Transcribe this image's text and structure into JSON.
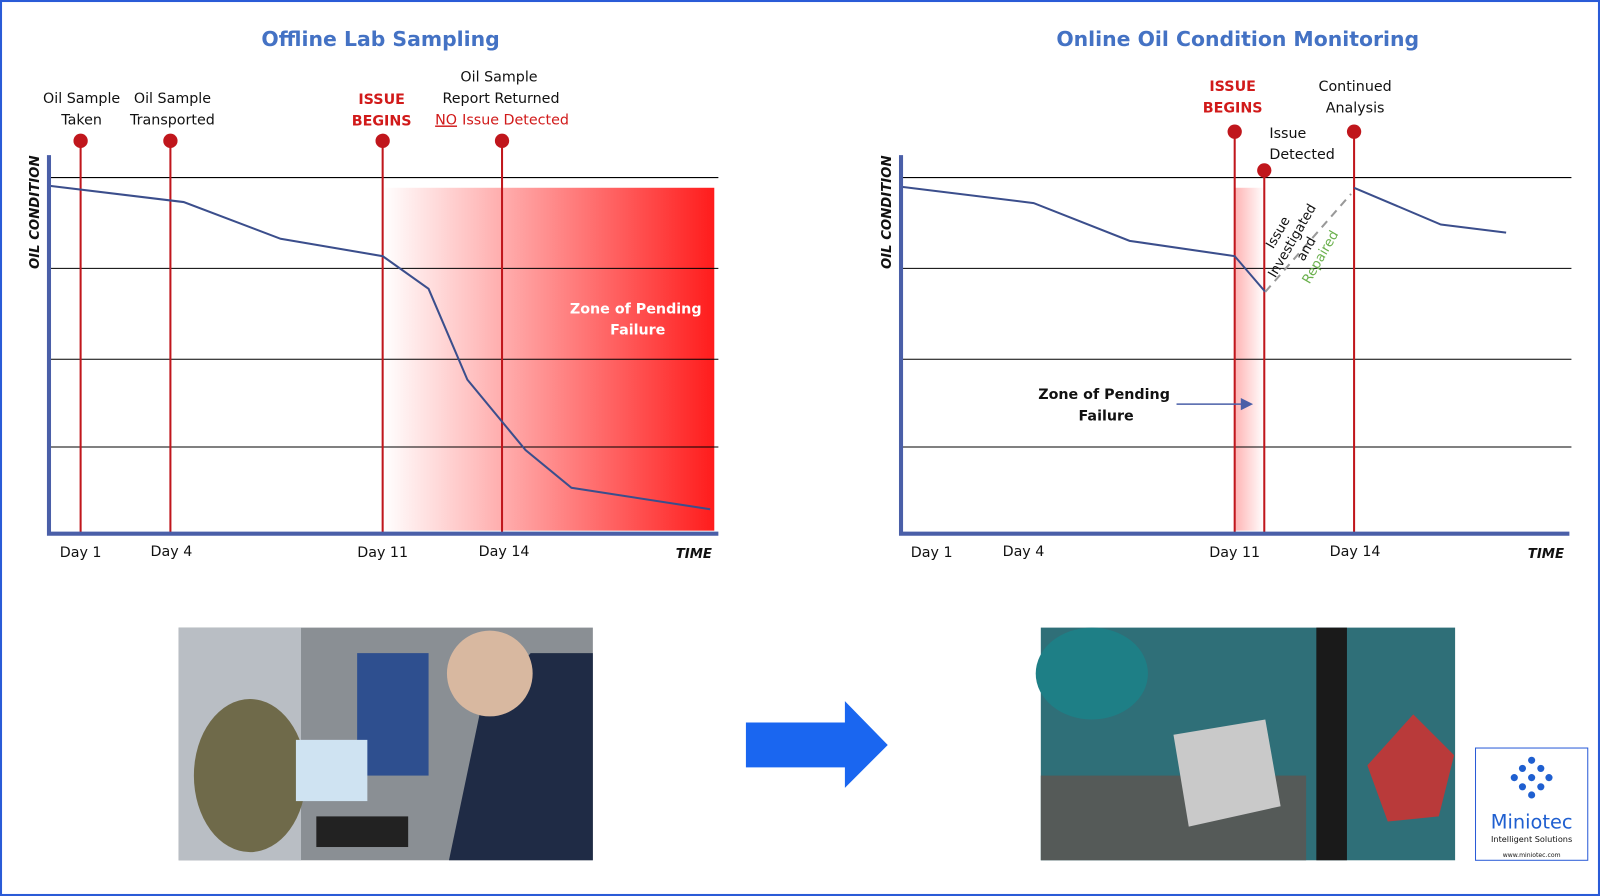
{
  "left": {
    "title": "Offline Lab Sampling",
    "y_label": "OIL CONDITION",
    "x_label": "TIME",
    "days": [
      "Day 1",
      "Day 4",
      "Day 11",
      "Day 14"
    ],
    "events": [
      {
        "lines": [
          "Oil Sample",
          "Taken"
        ]
      },
      {
        "lines": [
          "Oil Sample",
          "Transported"
        ]
      },
      {
        "lines": [
          "ISSUE",
          "BEGINS"
        ]
      },
      {
        "lines": [
          "Oil Sample",
          "Report Returned"
        ]
      }
    ],
    "report_flag": {
      "no": "NO",
      "rest": "Issue  Detected"
    },
    "zone": [
      "Zone of Pending",
      "Failure"
    ]
  },
  "right": {
    "title": "Online Oil Condition Monitoring",
    "y_label": "OIL CONDITION",
    "x_label": "TIME",
    "days": [
      "Day 1",
      "Day 4",
      "Day 11",
      "Day 14"
    ],
    "events": [
      {
        "lines": [
          "ISSUE",
          "BEGINS"
        ]
      },
      {
        "lines": [
          "Issue",
          "Detected"
        ]
      },
      {
        "lines": [
          "Continued",
          "Analysis"
        ]
      }
    ],
    "repair_note": [
      "Issue",
      "Investigated",
      "and",
      "Repaired"
    ],
    "zone": [
      "Zone of Pending",
      "Failure"
    ]
  },
  "logo": {
    "name": "Miniotec",
    "tagline": "Intelligent Solutions",
    "url": "www.miniotec.com"
  }
}
